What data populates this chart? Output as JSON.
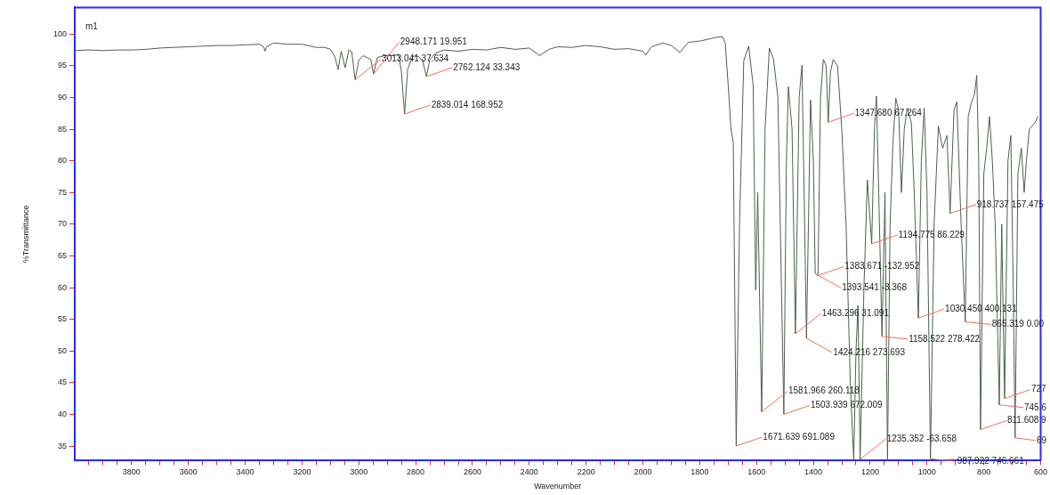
{
  "chart_data": {
    "type": "line",
    "xlabel": "Wavenumber",
    "ylabel": "%Transmittance",
    "color": "#4f5f4f",
    "marker": "none",
    "line_style": "solid",
    "xlim": [
      4000,
      600
    ],
    "ylim": [
      32.7,
      104.2
    ],
    "xticks": [
      {
        "value": 3950,
        "label": null
      },
      {
        "value": 3900,
        "label": null
      },
      {
        "value": 3850,
        "label": null
      },
      3800,
      {
        "value": 3750,
        "label": null
      },
      {
        "value": 3700,
        "label": null
      },
      {
        "value": 3650,
        "label": null
      },
      3600,
      {
        "value": 3550,
        "label": null
      },
      {
        "value": 3500,
        "label": null
      },
      {
        "value": 3450,
        "label": null
      },
      3400,
      {
        "value": 3350,
        "label": null
      },
      {
        "value": 3300,
        "label": null
      },
      {
        "value": 3250,
        "label": null
      },
      3200,
      {
        "value": 3150,
        "label": null
      },
      {
        "value": 3100,
        "label": null
      },
      {
        "value": 3050,
        "label": null
      },
      3000,
      {
        "value": 2950,
        "label": null
      },
      {
        "value": 2900,
        "label": null
      },
      {
        "value": 2850,
        "label": null
      },
      2800,
      {
        "value": 2750,
        "label": null
      },
      {
        "value": 2700,
        "label": null
      },
      {
        "value": 2650,
        "label": null
      },
      2600,
      {
        "value": 2550,
        "label": null
      },
      {
        "value": 2500,
        "label": null
      },
      {
        "value": 2450,
        "label": null
      },
      2400,
      {
        "value": 2350,
        "label": null
      },
      {
        "value": 2300,
        "label": null
      },
      {
        "value": 2250,
        "label": null
      },
      2200,
      {
        "value": 2150,
        "label": null
      },
      {
        "value": 2100,
        "label": null
      },
      {
        "value": 2050,
        "label": null
      },
      2000,
      {
        "value": 1950,
        "label": null
      },
      {
        "value": 1900,
        "label": null
      },
      {
        "value": 1850,
        "label": null
      },
      1800,
      {
        "value": 1750,
        "label": null
      },
      {
        "value": 1700,
        "label": null
      },
      {
        "value": 1650,
        "label": null
      },
      1600,
      {
        "value": 1550,
        "label": null
      },
      {
        "value": 1500,
        "label": null
      },
      {
        "value": 1450,
        "label": null
      },
      1400,
      {
        "value": 1350,
        "label": null
      },
      {
        "value": 1300,
        "label": null
      },
      {
        "value": 1250,
        "label": null
      },
      1200,
      {
        "value": 1150,
        "label": null
      },
      {
        "value": 1100,
        "label": null
      },
      {
        "value": 1050,
        "label": null
      },
      1000,
      {
        "value": 950,
        "label": null
      },
      {
        "value": 900,
        "label": null
      },
      {
        "value": 850,
        "label": null
      },
      800,
      {
        "value": 750,
        "label": null
      },
      {
        "value": 700,
        "label": null
      },
      {
        "value": 650,
        "label": null
      },
      600
    ],
    "yticks": [
      35,
      40,
      45,
      50,
      55,
      60,
      65,
      70,
      75,
      80,
      85,
      90,
      95,
      100
    ],
    "x": [
      4000,
      3950,
      3900,
      3850,
      3800,
      3750,
      3700,
      3650,
      3600,
      3550,
      3500,
      3450,
      3400,
      3350,
      3335,
      3330,
      3325,
      3300,
      3250,
      3200,
      3150,
      3120,
      3100,
      3085,
      3073,
      3062,
      3048,
      3035,
      3025,
      3013.041,
      3000,
      2985,
      2958,
      2948.171,
      2935,
      2910,
      2880,
      2860,
      2850,
      2839.014,
      2828,
      2810,
      2790,
      2775,
      2762.124,
      2750,
      2730,
      2700,
      2650,
      2600,
      2550,
      2500,
      2450,
      2400,
      2364,
      2330,
      2300,
      2250,
      2200,
      2150,
      2100,
      2050,
      2000,
      1990,
      1970,
      1930,
      1900,
      1870,
      1840,
      1800,
      1760,
      1740,
      1720,
      1710,
      1700,
      1690,
      1682,
      1671.639,
      1660,
      1645,
      1628,
      1612,
      1603,
      1596,
      1581.966,
      1570,
      1555,
      1540,
      1525,
      1503.939,
      1495,
      1488,
      1475,
      1463.296,
      1450,
      1440,
      1424.216,
      1410,
      1400,
      1393.541,
      1383.671,
      1375,
      1365,
      1355,
      1347.68,
      1340,
      1330,
      1315,
      1300,
      1285,
      1270,
      1258,
      1250,
      1243,
      1235.352,
      1222,
      1210,
      1194.775,
      1185,
      1178,
      1170,
      1158.522,
      1148,
      1139,
      1130,
      1120,
      1110,
      1100,
      1090,
      1080,
      1070,
      1055,
      1045,
      1030.45,
      1020,
      1010,
      1000,
      987.922,
      975,
      960,
      945,
      930,
      918.737,
      905,
      895,
      880,
      865.319,
      855,
      845,
      833,
      825,
      818,
      811.608,
      800,
      790,
      780,
      770,
      760,
      745.6,
      737,
      727,
      715,
      705,
      697,
      690,
      680,
      668,
      658,
      650,
      640,
      620,
      610
    ],
    "values": [
      97.4,
      97.5,
      97.4,
      97.5,
      97.5,
      97.6,
      97.8,
      97.9,
      98.0,
      98.1,
      98.2,
      98.2,
      98.3,
      98.4,
      98.0,
      97.3,
      98.0,
      98.6,
      98.4,
      98.4,
      97.9,
      97.9,
      97.6,
      96.5,
      94.4,
      97.3,
      94.7,
      97.5,
      97.2,
      92.8,
      95.9,
      96.6,
      96.0,
      93.7,
      96.3,
      96.6,
      96.6,
      96.8,
      94.0,
      87.4,
      94.5,
      96.5,
      96.5,
      95.7,
      93.3,
      96.0,
      97.0,
      97.5,
      97.3,
      97.6,
      97.5,
      97.9,
      97.6,
      97.8,
      96.6,
      97.6,
      98.0,
      97.9,
      98.2,
      98.0,
      97.6,
      97.7,
      97.3,
      96.7,
      98.0,
      98.6,
      98.2,
      97.1,
      98.7,
      98.9,
      99.3,
      99.5,
      99.6,
      98.5,
      92,
      85,
      83,
      35.0,
      70,
      95.8,
      98.1,
      92,
      59.6,
      75,
      40.4,
      85,
      97.8,
      96,
      90,
      40.0,
      80,
      91.7,
      85,
      52.7,
      90,
      95.1,
      52.0,
      89.6,
      80,
      62.2,
      61.9,
      90,
      96.0,
      95,
      86.1,
      94,
      96.0,
      95,
      85,
      70,
      45,
      32.8,
      50,
      57.2,
      32.9,
      60,
      77.0,
      66.9,
      85,
      90.2,
      75,
      52.3,
      75,
      32.8,
      70,
      82.8,
      89.9,
      88,
      75,
      85,
      88.3,
      86,
      75,
      55.2,
      80,
      88.3,
      75,
      33.0,
      70,
      85.5,
      82,
      84,
      71.7,
      88,
      89.3,
      70,
      54.6,
      87,
      89,
      90.5,
      93.5,
      80,
      37.6,
      78,
      82,
      87,
      80,
      70,
      41.5,
      70,
      42.5,
      80,
      84,
      62,
      36.3,
      78,
      82,
      75,
      80,
      85,
      86,
      87
    ],
    "annotations": [
      "m1",
      {
        "text": "3013.041 37.634",
        "x": 3013.041,
        "y": 92.8
      },
      {
        "text": "2948.171 19.951",
        "x": 2948.171,
        "y": 93.7
      },
      {
        "text": "2839.014 168.952",
        "x": 2839.014,
        "y": 87.4
      },
      {
        "text": "2762.124 33.343",
        "x": 2762.124,
        "y": 93.3
      },
      {
        "text": "1347.680 67.264",
        "x": 1347.68,
        "y": 86.1
      },
      {
        "text": "1383.671 -132.952",
        "x": 1383.671,
        "y": 61.9
      },
      {
        "text": "1393.541 -3.368",
        "x": 1393.541,
        "y": 62.2
      },
      {
        "text": "1194.775 86.229",
        "x": 1194.775,
        "y": 66.9
      },
      {
        "text": "918.737 157.475",
        "x": 918.737,
        "y": 71.7
      },
      {
        "text": "1030.450 400.131",
        "x": 1030.45,
        "y": 55.2
      },
      {
        "text": "865.319 0.00",
        "x": 865.319,
        "y": 54.6
      },
      {
        "text": "1463.296 31.091",
        "x": 1463.296,
        "y": 52.7
      },
      {
        "text": "1424.216 273.693",
        "x": 1424.216,
        "y": 52.0
      },
      {
        "text": "1158.522 278.422",
        "x": 1158.522,
        "y": 52.3
      },
      {
        "text": "1581.966 260.118",
        "x": 1581.966,
        "y": 40.4
      },
      {
        "text": "1503.939 672.009",
        "x": 1503.939,
        "y": 40.0
      },
      {
        "text": "1671.639 691.089",
        "x": 1671.639,
        "y": 35.0
      },
      {
        "text": "1235.352 -63.658",
        "x": 1235.352,
        "y": 32.9
      },
      {
        "text": "987.922 746.661",
        "x": 987.922,
        "y": 33.0
      },
      {
        "text": "727",
        "x": 727,
        "y": 42.5
      },
      {
        "text": "745.6",
        "x": 745.6,
        "y": 41.5
      },
      {
        "text": "811.608 9",
        "x": 811.608,
        "y": 37.6
      },
      {
        "text": "69",
        "x": 690,
        "y": 36.3
      }
    ]
  }
}
